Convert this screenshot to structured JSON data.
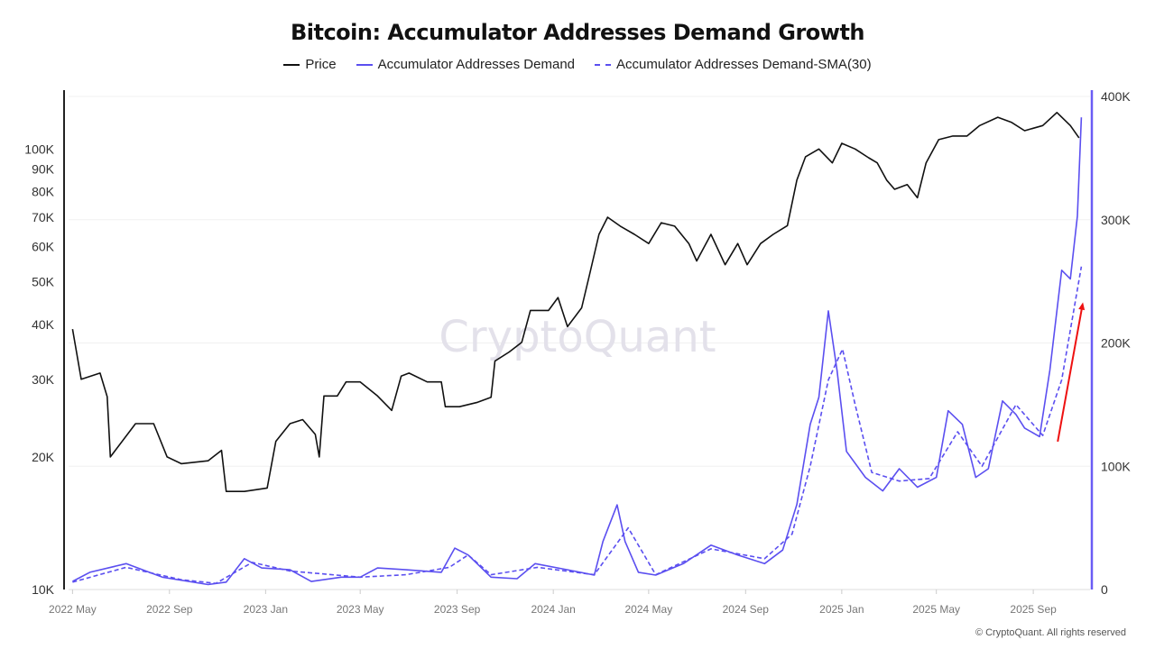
{
  "chart_data": {
    "type": "line",
    "title": "Bitcoin: Accumulator Addresses Demand Growth",
    "watermark": "CryptoQuant",
    "footer": "© CryptoQuant. All rights reserved",
    "legend_position": "top-center",
    "grid": true,
    "x_ticks": [
      "2022 May",
      "2022 Sep",
      "2023 Jan",
      "2023 May",
      "2023 Sep",
      "2024 Jan",
      "2024 May",
      "2024 Sep",
      "2025 Jan",
      "2025 May",
      "2025 Sep"
    ],
    "x_tick_dates": [
      "2022-05-01",
      "2022-09-01",
      "2023-01-01",
      "2023-05-01",
      "2023-09-01",
      "2024-01-01",
      "2024-05-01",
      "2024-09-01",
      "2025-01-01",
      "2025-05-01",
      "2025-09-01"
    ],
    "xlim": [
      "2022-04-26",
      "2025-11-12"
    ],
    "y_left": {
      "scale": "log",
      "ylim": [
        10000,
        136000
      ],
      "ticks": [
        10000,
        20000,
        30000,
        40000,
        50000,
        60000,
        70000,
        80000,
        90000,
        100000
      ],
      "tick_labels": [
        "10K",
        "20K",
        "30K",
        "40K",
        "50K",
        "60K",
        "70K",
        "80K",
        "90K",
        "100K"
      ]
    },
    "y_right": {
      "scale": "linear",
      "ylim": [
        0,
        400000
      ],
      "ticks": [
        0,
        100000,
        200000,
        300000,
        400000
      ],
      "tick_labels": [
        "0",
        "100K",
        "200K",
        "300K",
        "400K"
      ]
    },
    "colors": {
      "price": "#111111",
      "demand": "#5b4ff0",
      "sma": "#5b4ff0",
      "arrow": "#ee1111",
      "right_axis": "#6a5cf5"
    },
    "series": [
      {
        "name": "Price",
        "axis": "left",
        "style": "solid",
        "points": [
          [
            "2022-05-01",
            39000
          ],
          [
            "2022-05-12",
            30000
          ],
          [
            "2022-06-05",
            31000
          ],
          [
            "2022-06-14",
            27400
          ],
          [
            "2022-06-18",
            20000
          ],
          [
            "2022-07-20",
            23800
          ],
          [
            "2022-08-12",
            23800
          ],
          [
            "2022-08-29",
            20000
          ],
          [
            "2022-09-16",
            19300
          ],
          [
            "2022-10-20",
            19600
          ],
          [
            "2022-11-06",
            20700
          ],
          [
            "2022-11-12",
            16700
          ],
          [
            "2022-12-05",
            16700
          ],
          [
            "2023-01-03",
            17000
          ],
          [
            "2023-01-14",
            21700
          ],
          [
            "2023-02-01",
            23800
          ],
          [
            "2023-02-17",
            24300
          ],
          [
            "2023-03-05",
            22500
          ],
          [
            "2023-03-10",
            20000
          ],
          [
            "2023-03-16",
            27500
          ],
          [
            "2023-04-02",
            27500
          ],
          [
            "2023-04-13",
            29600
          ],
          [
            "2023-05-01",
            29600
          ],
          [
            "2023-05-23",
            27500
          ],
          [
            "2023-06-10",
            25500
          ],
          [
            "2023-06-22",
            30500
          ],
          [
            "2023-07-02",
            31000
          ],
          [
            "2023-07-25",
            29600
          ],
          [
            "2023-08-12",
            29600
          ],
          [
            "2023-08-17",
            26000
          ],
          [
            "2023-09-04",
            26000
          ],
          [
            "2023-09-27",
            26600
          ],
          [
            "2023-10-14",
            27300
          ],
          [
            "2023-10-19",
            33000
          ],
          [
            "2023-11-06",
            34600
          ],
          [
            "2023-11-22",
            36400
          ],
          [
            "2023-12-03",
            43000
          ],
          [
            "2023-12-26",
            43000
          ],
          [
            "2024-01-07",
            46000
          ],
          [
            "2024-01-19",
            39500
          ],
          [
            "2024-02-06",
            43600
          ],
          [
            "2024-02-16",
            51900
          ],
          [
            "2024-02-28",
            64000
          ],
          [
            "2024-03-10",
            70000
          ],
          [
            "2024-03-26",
            66800
          ],
          [
            "2024-04-13",
            64000
          ],
          [
            "2024-05-01",
            61000
          ],
          [
            "2024-05-17",
            68000
          ],
          [
            "2024-06-03",
            66800
          ],
          [
            "2024-06-21",
            61000
          ],
          [
            "2024-07-01",
            55700
          ],
          [
            "2024-07-19",
            64000
          ],
          [
            "2024-08-06",
            54600
          ],
          [
            "2024-08-22",
            61000
          ],
          [
            "2024-09-03",
            54600
          ],
          [
            "2024-09-20",
            61000
          ],
          [
            "2024-10-06",
            64000
          ],
          [
            "2024-10-24",
            67000
          ],
          [
            "2024-11-05",
            85000
          ],
          [
            "2024-11-16",
            96000
          ],
          [
            "2024-12-03",
            100000
          ],
          [
            "2024-12-20",
            93000
          ],
          [
            "2025-01-01",
            103000
          ],
          [
            "2025-01-18",
            100000
          ],
          [
            "2025-02-04",
            95500
          ],
          [
            "2025-02-15",
            93000
          ],
          [
            "2025-02-27",
            85000
          ],
          [
            "2025-03-09",
            81000
          ],
          [
            "2025-03-25",
            83000
          ],
          [
            "2025-04-07",
            77500
          ],
          [
            "2025-04-18",
            93000
          ],
          [
            "2025-05-04",
            105000
          ],
          [
            "2025-05-22",
            107000
          ],
          [
            "2025-06-09",
            107000
          ],
          [
            "2025-06-25",
            113000
          ],
          [
            "2025-07-18",
            118000
          ],
          [
            "2025-08-04",
            115000
          ],
          [
            "2025-08-21",
            110000
          ],
          [
            "2025-09-13",
            113000
          ],
          [
            "2025-10-01",
            121000
          ],
          [
            "2025-10-18",
            113000
          ],
          [
            "2025-10-29",
            106000
          ]
        ]
      },
      {
        "name": "Accumulator Addresses Demand",
        "axis": "right",
        "style": "solid",
        "points": [
          [
            "2022-05-01",
            6600
          ],
          [
            "2022-05-23",
            14000
          ],
          [
            "2022-07-08",
            21000
          ],
          [
            "2022-08-23",
            10000
          ],
          [
            "2022-10-20",
            4000
          ],
          [
            "2022-11-12",
            6000
          ],
          [
            "2022-12-05",
            25000
          ],
          [
            "2022-12-27",
            17500
          ],
          [
            "2023-02-01",
            16000
          ],
          [
            "2023-02-28",
            6500
          ],
          [
            "2023-04-07",
            10000
          ],
          [
            "2023-05-01",
            10000
          ],
          [
            "2023-05-23",
            17500
          ],
          [
            "2023-06-28",
            16000
          ],
          [
            "2023-08-12",
            14000
          ],
          [
            "2023-08-29",
            33600
          ],
          [
            "2023-09-15",
            28000
          ],
          [
            "2023-10-14",
            10000
          ],
          [
            "2023-11-16",
            8800
          ],
          [
            "2023-12-09",
            21000
          ],
          [
            "2024-01-19",
            16000
          ],
          [
            "2024-02-22",
            11700
          ],
          [
            "2024-03-04",
            39000
          ],
          [
            "2024-03-22",
            68700
          ],
          [
            "2024-04-01",
            39000
          ],
          [
            "2024-04-18",
            14000
          ],
          [
            "2024-05-10",
            11700
          ],
          [
            "2024-06-14",
            21000
          ],
          [
            "2024-07-19",
            36000
          ],
          [
            "2024-08-22",
            28000
          ],
          [
            "2024-09-25",
            21000
          ],
          [
            "2024-10-18",
            32000
          ],
          [
            "2024-11-05",
            69000
          ],
          [
            "2024-11-22",
            134000
          ],
          [
            "2024-12-03",
            156000
          ],
          [
            "2024-12-15",
            226000
          ],
          [
            "2024-12-26",
            178000
          ],
          [
            "2025-01-07",
            112000
          ],
          [
            "2025-01-31",
            91000
          ],
          [
            "2025-02-22",
            80000
          ],
          [
            "2025-03-15",
            98000
          ],
          [
            "2025-04-07",
            83000
          ],
          [
            "2025-05-01",
            91000
          ],
          [
            "2025-05-16",
            145000
          ],
          [
            "2025-06-03",
            134000
          ],
          [
            "2025-06-20",
            91000
          ],
          [
            "2025-07-06",
            98000
          ],
          [
            "2025-07-24",
            153000
          ],
          [
            "2025-08-10",
            142000
          ],
          [
            "2025-08-21",
            131000
          ],
          [
            "2025-09-09",
            124000
          ],
          [
            "2025-09-22",
            178000
          ],
          [
            "2025-10-07",
            259000
          ],
          [
            "2025-10-18",
            252000
          ],
          [
            "2025-10-27",
            303000
          ],
          [
            "2025-11-01",
            383000
          ]
        ]
      },
      {
        "name": "Accumulator Addresses Demand-SMA(30)",
        "axis": "right",
        "style": "dashed",
        "points": [
          [
            "2022-05-01",
            6000
          ],
          [
            "2022-07-08",
            18000
          ],
          [
            "2022-09-16",
            8000
          ],
          [
            "2022-10-30",
            5000
          ],
          [
            "2022-12-15",
            22000
          ],
          [
            "2023-02-01",
            15000
          ],
          [
            "2023-05-01",
            10000
          ],
          [
            "2023-06-28",
            12000
          ],
          [
            "2023-08-22",
            18000
          ],
          [
            "2023-09-15",
            28000
          ],
          [
            "2023-10-14",
            12000
          ],
          [
            "2023-12-12",
            18000
          ],
          [
            "2024-02-22",
            12000
          ],
          [
            "2024-04-05",
            50000
          ],
          [
            "2024-05-10",
            12000
          ],
          [
            "2024-07-19",
            33000
          ],
          [
            "2024-09-25",
            25000
          ],
          [
            "2024-10-30",
            45000
          ],
          [
            "2024-11-22",
            100000
          ],
          [
            "2024-12-15",
            170000
          ],
          [
            "2025-01-02",
            195000
          ],
          [
            "2025-01-18",
            150000
          ],
          [
            "2025-02-08",
            95000
          ],
          [
            "2025-03-15",
            88000
          ],
          [
            "2025-04-22",
            90000
          ],
          [
            "2025-05-28",
            128000
          ],
          [
            "2025-06-28",
            100000
          ],
          [
            "2025-08-10",
            150000
          ],
          [
            "2025-09-13",
            125000
          ],
          [
            "2025-10-07",
            170000
          ],
          [
            "2025-11-01",
            262000
          ]
        ]
      }
    ],
    "annotations": [
      {
        "type": "arrow",
        "axis": "right",
        "from": [
          "2025-10-02",
          120000
        ],
        "to": [
          "2025-11-03",
          233000
        ]
      }
    ]
  }
}
